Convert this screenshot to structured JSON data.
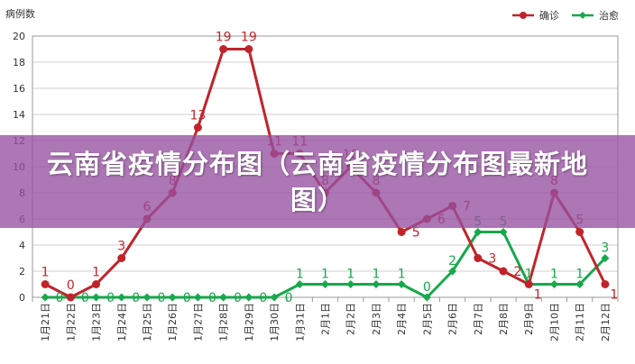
{
  "banner": {
    "title": "云南省疫情分布图（云南省疫情分布图最新地图）"
  },
  "chart_data": {
    "type": "line",
    "title": "",
    "ylabel": "病例数",
    "xlabel": "",
    "ylim": [
      0,
      20
    ],
    "yticks": [
      0,
      2,
      4,
      6,
      8,
      10,
      12,
      14,
      16,
      18,
      20
    ],
    "grid": true,
    "legend_position": "top-right",
    "categories": [
      "1月21日",
      "1月22日",
      "1月23日",
      "1月24日",
      "1月25日",
      "1月26日",
      "1月27日",
      "1月28日",
      "1月29日",
      "1月30日",
      "1月31日",
      "2月1日",
      "2月2日",
      "2月3日",
      "2月4日",
      "2月5日",
      "2月6日",
      "2月7日",
      "2月8日",
      "2月9日",
      "2月10日",
      "2月11日",
      "2月12日"
    ],
    "series": [
      {
        "name": "确诊",
        "color": "#c0242b",
        "values": [
          1,
          0,
          1,
          3,
          6,
          8,
          13,
          19,
          19,
          11,
          11,
          8,
          10,
          8,
          5,
          6,
          7,
          3,
          2,
          1,
          8,
          5,
          1
        ]
      },
      {
        "name": "治愈",
        "color": "#17a84b",
        "values": [
          0,
          0,
          0,
          0,
          0,
          0,
          0,
          0,
          0,
          0,
          1,
          1,
          1,
          1,
          1,
          0,
          2,
          5,
          5,
          1,
          1,
          1,
          3
        ]
      }
    ]
  }
}
